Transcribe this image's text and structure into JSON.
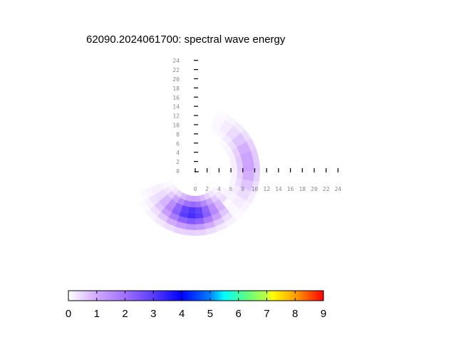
{
  "title": "62090.2024061700: spectral wave energy",
  "chart_data": {
    "type": "heatmap",
    "subtype": "polar directional wave spectrum",
    "title": "62090.2024061700: spectral wave energy",
    "station": "62090",
    "datetime": "2024061700",
    "xlabel": "",
    "ylabel": "",
    "x_ticks": [
      0,
      2,
      4,
      6,
      8,
      10,
      12,
      14,
      16,
      18,
      20,
      22,
      24
    ],
    "y_ticks": [
      0,
      2,
      4,
      6,
      8,
      10,
      12,
      14,
      16,
      18,
      20,
      22,
      24
    ],
    "xlim": [
      0,
      24
    ],
    "ylim": [
      0,
      24
    ],
    "grid": false,
    "colorbar": {
      "orientation": "horizontal",
      "position": "bottom",
      "range": [
        0,
        9
      ],
      "ticks": [
        0,
        1,
        2,
        3,
        4,
        5,
        6,
        7,
        8,
        9
      ],
      "colors": [
        "#ffffff",
        "#c896ff",
        "#9664ff",
        "#4b32ff",
        "#0000ff",
        "#0064ff",
        "#00ffff",
        "#64ff64",
        "#ffff00",
        "#ff9600",
        "#ff0000"
      ]
    },
    "energy_regions": [
      {
        "name": "main-peak",
        "direction": "south (slightly southwest)",
        "radius_range_px": [
          35,
          90
        ],
        "max_value": 3.2,
        "peak_color": "#4b3cff"
      },
      {
        "name": "secondary-arc",
        "direction": "east-northeast",
        "radius_range_px": [
          55,
          90
        ],
        "max_value": 1.2,
        "peak_color": "#d8b8f8"
      }
    ]
  },
  "colorbar": {
    "labels": [
      "0",
      "1",
      "2",
      "3",
      "4",
      "5",
      "6",
      "7",
      "8",
      "9"
    ]
  },
  "axes": {
    "x_labels": [
      "0",
      "2",
      "4",
      "6",
      "8",
      "10",
      "12",
      "14",
      "16",
      "18",
      "20",
      "22",
      "24"
    ],
    "y_labels": [
      "0",
      "2",
      "4",
      "6",
      "8",
      "10",
      "12",
      "14",
      "16",
      "18",
      "20",
      "22",
      "24"
    ]
  }
}
